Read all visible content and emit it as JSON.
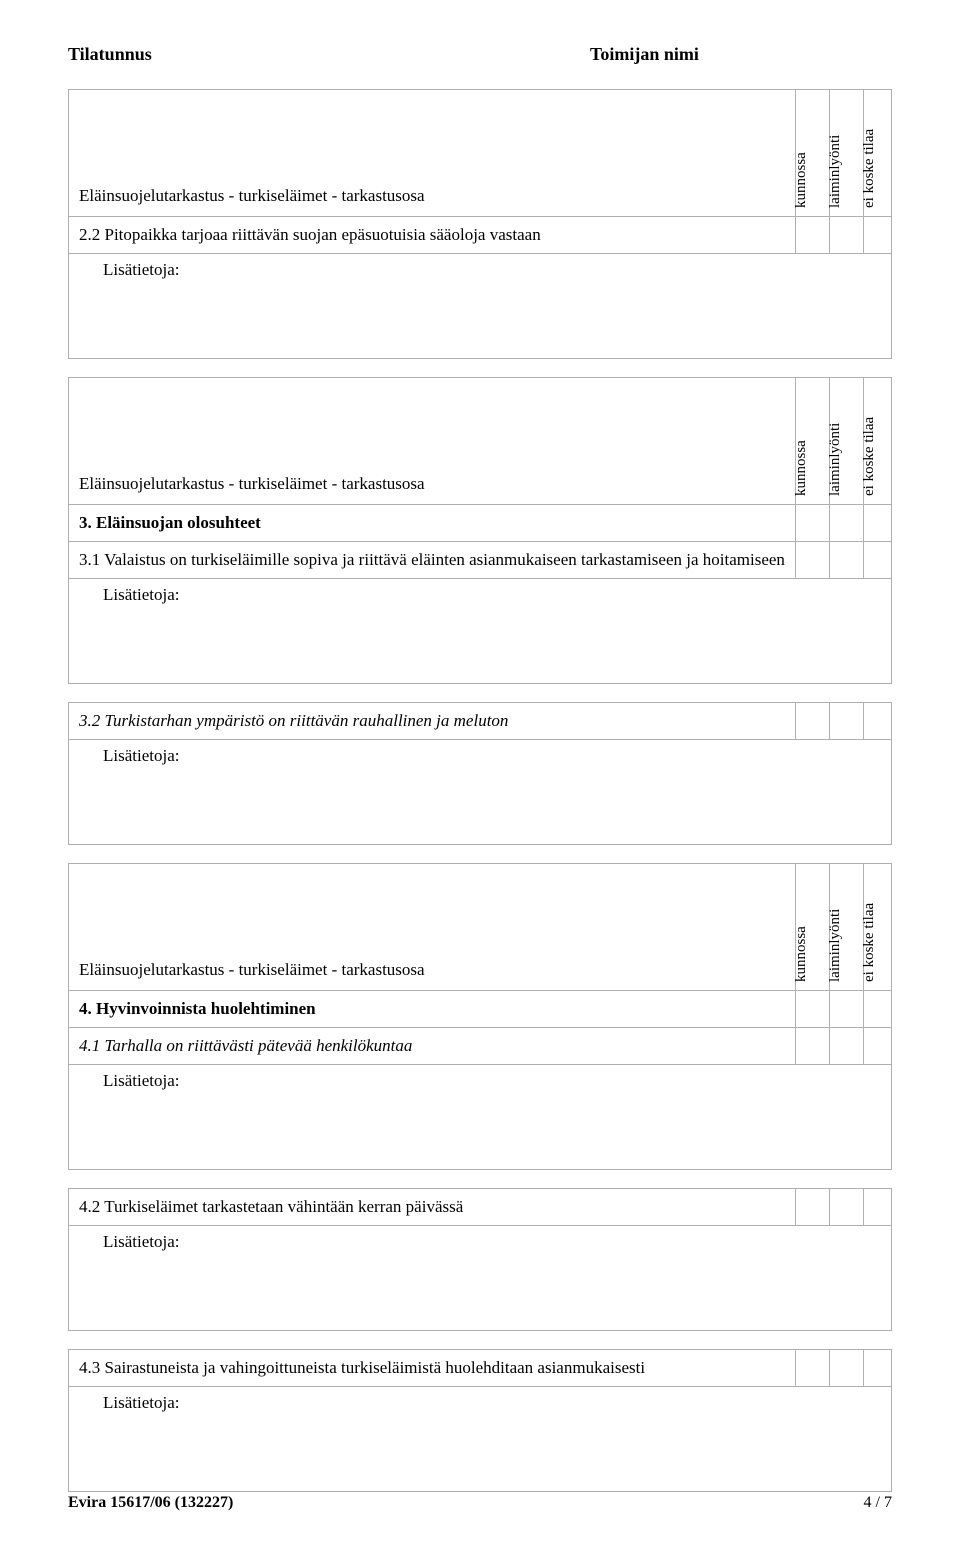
{
  "header": {
    "left": "Tilatunnus",
    "right": "Toimijan nimi"
  },
  "colLabels": {
    "c1": "kunnossa",
    "c2": "laiminlyönti",
    "c3": "ei koske tilaa"
  },
  "blocks": [
    {
      "hasHead": true,
      "headTitle": "Eläinsuojelutarkastus - turkiseläimet - tarkastusosa",
      "items": [
        {
          "text": "2.2 Pitopaikka tarjoaa riittävän suojan epäsuotuisia sääoloja vastaan",
          "style": "normal",
          "hasChecks": true,
          "notes": true
        }
      ]
    },
    {
      "hasHead": true,
      "headTitle": "Eläinsuojelutarkastus - turkiseläimet - tarkastusosa",
      "items": [
        {
          "text": "3. Eläinsuojan olosuhteet",
          "style": "bold",
          "hasChecks": true,
          "notes": false
        },
        {
          "text": "3.1 Valaistus on turkiseläimille sopiva ja riittävä eläinten asianmukaiseen tarkastamiseen ja hoitamiseen",
          "style": "normal",
          "hasChecks": true,
          "notes": true
        }
      ]
    },
    {
      "hasHead": false,
      "items": [
        {
          "text": "3.2 Turkistarhan ympäristö on riittävän rauhallinen ja meluton",
          "style": "italic",
          "hasChecks": true,
          "notes": true
        }
      ]
    },
    {
      "hasHead": true,
      "headTitle": "Eläinsuojelutarkastus - turkiseläimet - tarkastusosa",
      "items": [
        {
          "text": "4. Hyvinvoinnista huolehtiminen",
          "style": "bold",
          "hasChecks": true,
          "notes": false
        },
        {
          "text": "4.1 Tarhalla on riittävästi pätevää henkilökuntaa",
          "style": "italic",
          "hasChecks": true,
          "notes": true
        }
      ]
    },
    {
      "hasHead": false,
      "items": [
        {
          "text": "4.2 Turkiseläimet tarkastetaan vähintään kerran päivässä",
          "style": "normal",
          "hasChecks": true,
          "notes": true
        }
      ]
    },
    {
      "hasHead": false,
      "items": [
        {
          "text": "4.3 Sairastuneista ja vahingoittuneista turkiseläimistä huolehditaan asianmukaisesti",
          "style": "normal",
          "hasChecks": true,
          "notes": true
        }
      ]
    }
  ],
  "notesLabel": "Lisätietoja:",
  "footer": {
    "left": "Evira 15617/06 (132227)",
    "right": "4 / 7"
  }
}
